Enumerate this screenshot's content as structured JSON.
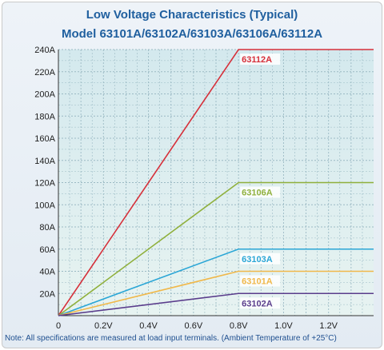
{
  "chart_data": {
    "type": "line",
    "title": "Low Voltage Characteristics (Typical)",
    "subtitle": "Model 63101A/63102A/63103A/63106A/63112A",
    "note": "Note: All specifications are measured at load input terminals. (Ambient Temperature of +25°C)",
    "xlabel": "",
    "ylabel": "",
    "xlim": [
      0,
      1.4
    ],
    "ylim": [
      0,
      240
    ],
    "x_ticks": [
      {
        "value": 0,
        "label": "0"
      },
      {
        "value": 0.2,
        "label": "0.2V"
      },
      {
        "value": 0.4,
        "label": "0.4V"
      },
      {
        "value": 0.6,
        "label": "0.6V"
      },
      {
        "value": 0.8,
        "label": "0.8V"
      },
      {
        "value": 1.0,
        "label": "1.0V"
      },
      {
        "value": 1.2,
        "label": "1.2V"
      }
    ],
    "y_ticks": [
      {
        "value": 20,
        "label": "20A"
      },
      {
        "value": 40,
        "label": "40A"
      },
      {
        "value": 60,
        "label": "60A"
      },
      {
        "value": 80,
        "label": "80A"
      },
      {
        "value": 100,
        "label": "100A"
      },
      {
        "value": 120,
        "label": "120A"
      },
      {
        "value": 140,
        "label": "140A"
      },
      {
        "value": 160,
        "label": "160A"
      },
      {
        "value": 180,
        "label": "180A"
      },
      {
        "value": 200,
        "label": "200A"
      },
      {
        "value": 220,
        "label": "220A"
      },
      {
        "value": 240,
        "label": "240A"
      }
    ],
    "grid": true,
    "series": [
      {
        "name": "63112A",
        "color": "#d6303a",
        "x": [
          0,
          0.8,
          1.4
        ],
        "y": [
          0,
          240,
          240
        ]
      },
      {
        "name": "63106A",
        "color": "#8fb03c",
        "x": [
          0,
          0.8,
          1.4
        ],
        "y": [
          0,
          120,
          120
        ]
      },
      {
        "name": "63103A",
        "color": "#2aa6d6",
        "x": [
          0,
          0.8,
          1.4
        ],
        "y": [
          0,
          60,
          60
        ]
      },
      {
        "name": "63101A",
        "color": "#f0b84a",
        "x": [
          0,
          0.8,
          1.4
        ],
        "y": [
          0,
          40,
          40
        ]
      },
      {
        "name": "63102A",
        "color": "#5a3d8c",
        "x": [
          0,
          0.8,
          1.4
        ],
        "y": [
          0,
          20,
          20
        ]
      }
    ]
  }
}
